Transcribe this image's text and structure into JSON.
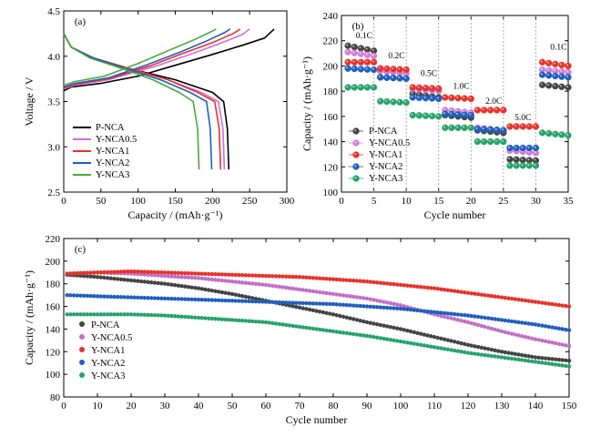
{
  "chart_data": [
    {
      "panel": "(a)",
      "type": "line",
      "xlabel": "Capacity / (mAh·g⁻¹)",
      "ylabel": "Voltage / V",
      "xlim": [
        0,
        300
      ],
      "ylim": [
        2.5,
        4.5
      ],
      "xticks": [
        "0",
        "50",
        "100",
        "150",
        "200",
        "250",
        "300"
      ],
      "yticks": [
        "2.5",
        "3.0",
        "3.5",
        "4.0",
        "4.5"
      ],
      "legend_position": "bottom-left",
      "series": [
        {
          "name": "P-NCA",
          "color": "#000000",
          "charge": [
            [
              0,
              3.62
            ],
            [
              10,
              3.66
            ],
            [
              50,
              3.7
            ],
            [
              100,
              3.78
            ],
            [
              150,
              3.9
            ],
            [
              200,
              4.02
            ],
            [
              240,
              4.12
            ],
            [
              270,
              4.2
            ],
            [
              283,
              4.3
            ]
          ],
          "discharge": [
            [
              0,
              4.25
            ],
            [
              10,
              4.1
            ],
            [
              40,
              3.97
            ],
            [
              90,
              3.86
            ],
            [
              150,
              3.74
            ],
            [
              200,
              3.6
            ],
            [
              215,
              3.5
            ],
            [
              220,
              3.2
            ],
            [
              222,
              2.75
            ]
          ]
        },
        {
          "name": "Y-NCA0.5",
          "color": "#d070d8",
          "charge": [
            [
              0,
              3.64
            ],
            [
              15,
              3.68
            ],
            [
              60,
              3.74
            ],
            [
              120,
              3.88
            ],
            [
              170,
              4.02
            ],
            [
              210,
              4.14
            ],
            [
              240,
              4.24
            ],
            [
              250,
              4.3
            ]
          ],
          "discharge": [
            [
              0,
              4.25
            ],
            [
              10,
              4.1
            ],
            [
              40,
              3.98
            ],
            [
              90,
              3.86
            ],
            [
              140,
              3.74
            ],
            [
              185,
              3.6
            ],
            [
              208,
              3.5
            ],
            [
              214,
              3.2
            ],
            [
              216,
              2.75
            ]
          ]
        },
        {
          "name": "Y-NCA1",
          "color": "#e8322a",
          "charge": [
            [
              0,
              3.65
            ],
            [
              15,
              3.69
            ],
            [
              60,
              3.75
            ],
            [
              115,
              3.89
            ],
            [
              160,
              4.03
            ],
            [
              200,
              4.15
            ],
            [
              228,
              4.25
            ],
            [
              237,
              4.3
            ]
          ],
          "discharge": [
            [
              0,
              4.25
            ],
            [
              10,
              4.1
            ],
            [
              40,
              3.98
            ],
            [
              90,
              3.86
            ],
            [
              140,
              3.74
            ],
            [
              180,
              3.6
            ],
            [
              203,
              3.5
            ],
            [
              209,
              3.2
            ],
            [
              211,
              2.75
            ]
          ]
        },
        {
          "name": "Y-NCA2",
          "color": "#1f5fbf",
          "charge": [
            [
              0,
              3.66
            ],
            [
              15,
              3.7
            ],
            [
              60,
              3.76
            ],
            [
              110,
              3.9
            ],
            [
              155,
              4.04
            ],
            [
              190,
              4.16
            ],
            [
              216,
              4.26
            ],
            [
              224,
              4.3
            ]
          ],
          "discharge": [
            [
              0,
              4.25
            ],
            [
              10,
              4.1
            ],
            [
              40,
              3.98
            ],
            [
              85,
              3.86
            ],
            [
              130,
              3.74
            ],
            [
              170,
              3.6
            ],
            [
              192,
              3.5
            ],
            [
              197,
              3.2
            ],
            [
              199,
              2.75
            ]
          ]
        },
        {
          "name": "Y-NCA3",
          "color": "#4aa83a",
          "charge": [
            [
              0,
              3.68
            ],
            [
              15,
              3.72
            ],
            [
              55,
              3.78
            ],
            [
              100,
              3.92
            ],
            [
              140,
              4.06
            ],
            [
              175,
              4.18
            ],
            [
              198,
              4.27
            ],
            [
              205,
              4.3
            ]
          ],
          "discharge": [
            [
              0,
              4.25
            ],
            [
              10,
              4.1
            ],
            [
              35,
              3.98
            ],
            [
              80,
              3.86
            ],
            [
              120,
              3.74
            ],
            [
              155,
              3.6
            ],
            [
              174,
              3.5
            ],
            [
              180,
              3.2
            ],
            [
              182,
              2.75
            ]
          ]
        }
      ]
    },
    {
      "panel": "(b)",
      "type": "scatter",
      "xlabel": "Cycle number",
      "ylabel": "Capacity / (mAh·g⁻¹)",
      "xlim": [
        0,
        35
      ],
      "ylim": [
        100,
        240
      ],
      "xticks": [
        "0",
        "5",
        "10",
        "15",
        "20",
        "25",
        "30",
        "35"
      ],
      "yticks": [
        "100",
        "120",
        "140",
        "160",
        "180",
        "200",
        "220",
        "240"
      ],
      "rate_labels": [
        "0.1C",
        "0.2C",
        "0.5C",
        "1.0C",
        "2.0C",
        "5.0C",
        "0.1C"
      ],
      "legend_position": "bottom-left",
      "series": [
        {
          "name": "P-NCA",
          "color": "#444444",
          "segments": [
            [
              216,
              212
            ],
            [
              191,
              190
            ],
            [
              178,
              175
            ],
            [
              161,
              159
            ],
            [
              149,
              147
            ],
            [
              126,
              125
            ],
            [
              185,
              183
            ]
          ]
        },
        {
          "name": "Y-NCA0.5",
          "color": "#d080d8",
          "segments": [
            [
              211,
              208
            ],
            [
              196,
              194
            ],
            [
              182,
              180
            ],
            [
              165,
              163
            ],
            [
              151,
              149
            ],
            [
              133,
              131
            ],
            [
              197,
              195
            ]
          ]
        },
        {
          "name": "Y-NCA1",
          "color": "#e8322a",
          "segments": [
            [
              203,
              203
            ],
            [
              198,
              197
            ],
            [
              183,
              182
            ],
            [
              175,
              174
            ],
            [
              165,
              165
            ],
            [
              152,
              152
            ],
            [
              203,
              200
            ]
          ]
        },
        {
          "name": "Y-NCA2",
          "color": "#1f5fbf",
          "segments": [
            [
              198,
              197
            ],
            [
              191,
              190
            ],
            [
              175,
              174
            ],
            [
              162,
              161
            ],
            [
              150,
              149
            ],
            [
              135,
              135
            ],
            [
              193,
              191
            ]
          ]
        },
        {
          "name": "Y-NCA3",
          "color": "#27a36a",
          "segments": [
            [
              183,
              183
            ],
            [
              172,
              171
            ],
            [
              161,
              160
            ],
            [
              151,
              151
            ],
            [
              140,
              140
            ],
            [
              121,
              121
            ],
            [
              147,
              145
            ]
          ]
        }
      ]
    },
    {
      "panel": "(c)",
      "type": "scatter",
      "xlabel": "Cycle number",
      "ylabel": "Capacity / (mAh·g⁻¹)",
      "xlim": [
        0,
        150
      ],
      "ylim": [
        80,
        220
      ],
      "xticks": [
        "0",
        "10",
        "20",
        "30",
        "40",
        "50",
        "60",
        "70",
        "80",
        "90",
        "100",
        "110",
        "120",
        "130",
        "140",
        "150"
      ],
      "yticks": [
        "80",
        "100",
        "120",
        "140",
        "160",
        "180",
        "200",
        "220"
      ],
      "legend_position": "middle-left",
      "series": [
        {
          "name": "P-NCA",
          "color": "#444444",
          "x": [
            1,
            10,
            20,
            30,
            40,
            50,
            60,
            70,
            80,
            90,
            100,
            110,
            120,
            130,
            140,
            150
          ],
          "values": [
            188,
            186,
            183,
            180,
            176,
            171,
            165,
            159,
            153,
            146,
            140,
            133,
            126,
            120,
            115,
            112
          ]
        },
        {
          "name": "Y-NCA0.5",
          "color": "#c070c8",
          "x": [
            1,
            10,
            20,
            30,
            40,
            50,
            60,
            70,
            80,
            90,
            100,
            110,
            120,
            130,
            140,
            150
          ],
          "values": [
            189,
            190,
            189,
            187,
            185,
            182,
            179,
            175,
            171,
            167,
            161,
            153,
            146,
            138,
            131,
            125
          ]
        },
        {
          "name": "Y-NCA1",
          "color": "#e8322a",
          "x": [
            1,
            10,
            20,
            30,
            40,
            50,
            60,
            70,
            80,
            90,
            100,
            110,
            120,
            130,
            140,
            150
          ],
          "values": [
            189,
            190,
            191,
            190,
            189,
            188,
            187,
            186,
            184,
            182,
            179,
            176,
            172,
            168,
            164,
            160
          ]
        },
        {
          "name": "Y-NCA2",
          "color": "#1f5fbf",
          "x": [
            1,
            10,
            20,
            30,
            40,
            50,
            60,
            70,
            80,
            90,
            100,
            110,
            120,
            130,
            140,
            150
          ],
          "values": [
            170,
            169,
            168,
            167,
            166,
            165,
            164,
            163,
            162,
            160,
            158,
            155,
            152,
            148,
            144,
            139
          ]
        },
        {
          "name": "Y-NCA3",
          "color": "#27a36a",
          "x": [
            1,
            10,
            20,
            30,
            40,
            50,
            60,
            70,
            80,
            90,
            100,
            110,
            120,
            130,
            140,
            150
          ],
          "values": [
            153,
            153,
            153,
            152,
            150,
            148,
            146,
            142,
            138,
            134,
            129,
            124,
            119,
            115,
            111,
            107
          ]
        }
      ]
    }
  ]
}
